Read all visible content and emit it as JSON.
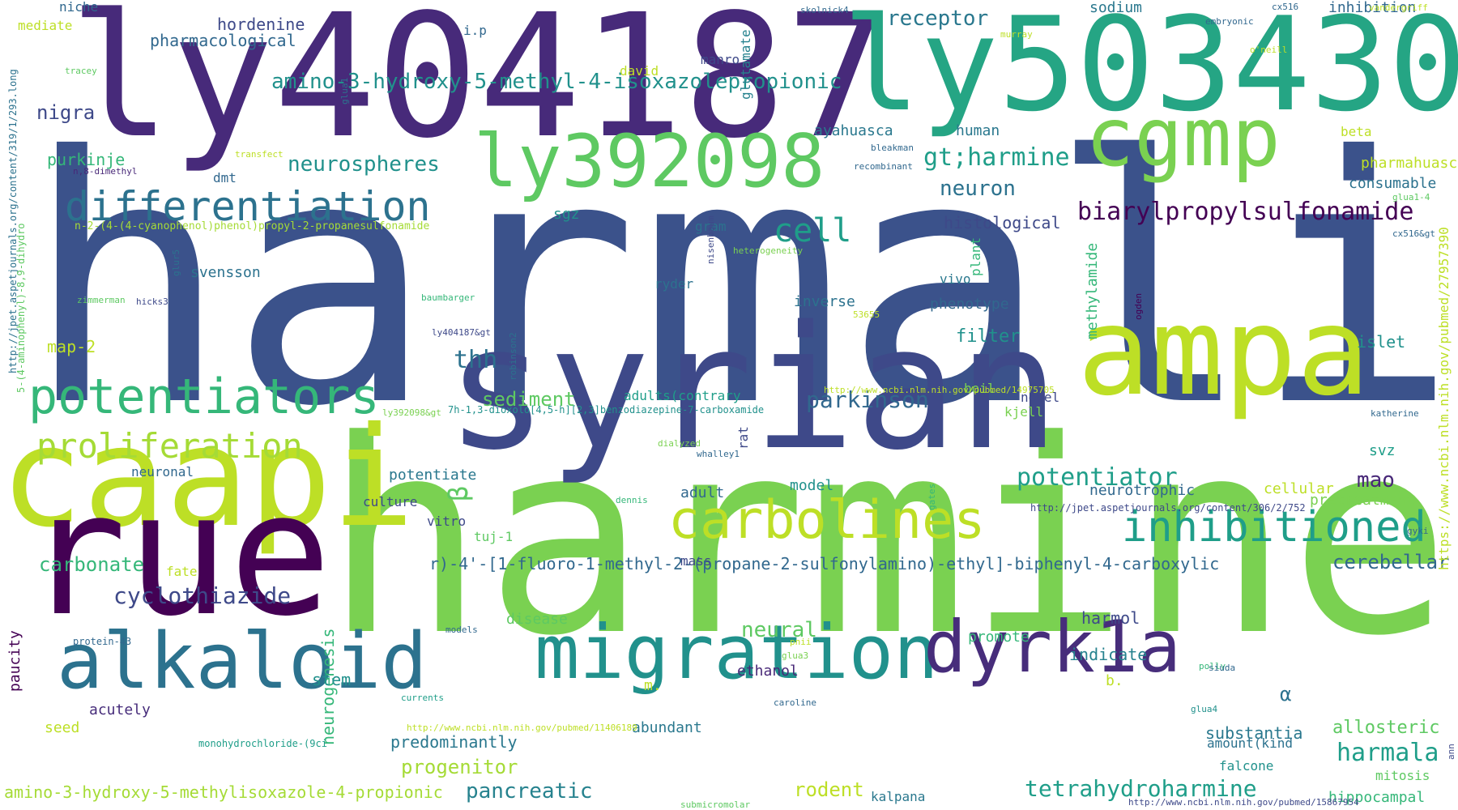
{
  "words": [
    {
      "text": "harmaline",
      "color": "#3b528b"
    },
    {
      "text": "harmine",
      "color": "#7ad151"
    },
    {
      "text": "ly404187",
      "color": "#472a7a"
    },
    {
      "text": "ly503430",
      "color": "#25a584"
    },
    {
      "text": "syrian",
      "color": "#3e4989"
    },
    {
      "text": "caapi",
      "color": "#bddf26"
    },
    {
      "text": "rue",
      "color": "#440154"
    },
    {
      "text": "ampa",
      "color": "#bddf26"
    },
    {
      "text": "cgmp",
      "color": "#7ad151"
    },
    {
      "text": "ly392098",
      "color": "#5ec962"
    },
    {
      "text": "migration",
      "color": "#21918c"
    },
    {
      "text": "dyrk1a",
      "color": "#472d7b"
    },
    {
      "text": "alkaloid",
      "color": "#2c728e"
    },
    {
      "text": "potentiators",
      "color": "#35b779"
    },
    {
      "text": "differentiation",
      "color": "#2c728e"
    },
    {
      "text": "carbolines",
      "color": "#bddf26"
    },
    {
      "text": "inhibitioned",
      "color": "#1f9e89"
    },
    {
      "text": "proliferation",
      "color": "#a5db36"
    },
    {
      "text": "cell",
      "color": "#1f9e89"
    },
    {
      "text": "biarylpropylsulfonamide",
      "color": "#440154"
    },
    {
      "text": "amino-3-hydroxy-5-methyl-4-isoxazolepropionic",
      "color": "#21918c"
    },
    {
      "text": "neurospheres",
      "color": "#21918c"
    },
    {
      "text": "gt;harmine",
      "color": "#1f9e89"
    },
    {
      "text": "receptor",
      "color": "#2a788e"
    },
    {
      "text": "potentiator",
      "color": "#1f9e89"
    },
    {
      "text": "parkinson",
      "color": "#31688e"
    },
    {
      "text": "tetrahydroharmine",
      "color": "#1f9e89"
    },
    {
      "text": "cyclothiazide",
      "color": "#3e4989"
    },
    {
      "text": "carbonate",
      "color": "#35b779"
    },
    {
      "text": "pancreatic",
      "color": "#26828e"
    },
    {
      "text": "harmala",
      "color": "#1f9e89"
    },
    {
      "text": "mao",
      "color": "#482878"
    },
    {
      "text": "nigra",
      "color": "#3e4989"
    },
    {
      "text": "thh",
      "color": "#2c728e"
    },
    {
      "text": "sediment",
      "color": "#5ec962"
    },
    {
      "text": "neuron",
      "color": "#2c728e"
    },
    {
      "text": "progenitor",
      "color": "#a5db36"
    },
    {
      "text": "predominantly",
      "color": "#2a788e"
    },
    {
      "text": "r)-4'-[1-fluoro-1-methyl-2-(propane-2-sulfonylamino)-ethyl]-biphenyl-4-carboxylic",
      "color": "#31688e"
    },
    {
      "text": "amino-3-hydroxy-5-methylisoxazole-4-propionic",
      "color": "#a5db36"
    },
    {
      "text": "cerebellar",
      "color": "#31688e"
    },
    {
      "text": "rodent",
      "color": "#bddf26"
    },
    {
      "text": "hordenine",
      "color": "#3e4989"
    },
    {
      "text": "pharmacological",
      "color": "#31688e"
    },
    {
      "text": "histological",
      "color": "#3e4989"
    },
    {
      "text": "neural",
      "color": "#5ec962"
    },
    {
      "text": "neurogenesis",
      "color": "#35b779"
    },
    {
      "text": "purkinje",
      "color": "#35b779"
    },
    {
      "text": "map-2",
      "color": "#bddf26"
    },
    {
      "text": "potentiate",
      "color": "#2a788e"
    },
    {
      "text": "ayahuasca",
      "color": "#2a788e"
    },
    {
      "text": "inverse",
      "color": "#2c728e"
    },
    {
      "text": "filter",
      "color": "#21918c"
    },
    {
      "text": "phenotype",
      "color": "#31688e"
    },
    {
      "text": "substantia",
      "color": "#2a788e"
    },
    {
      "text": "allosteric",
      "color": "#5ec962"
    },
    {
      "text": "indicate",
      "color": "#26828e"
    },
    {
      "text": "harmol",
      "color": "#3e4989"
    },
    {
      "text": "human",
      "color": "#2a788e"
    },
    {
      "text": "svensson",
      "color": "#2c728e"
    },
    {
      "text": "neurotrophic",
      "color": "#31688e"
    },
    {
      "text": "methylamide",
      "color": "#35b779"
    },
    {
      "text": "glutamate",
      "color": "#26828e"
    },
    {
      "text": "pharmahuasca",
      "color": "#bddf26"
    },
    {
      "text": "consumable",
      "color": "#2c728e"
    },
    {
      "text": "islet",
      "color": "#21918c"
    },
    {
      "text": "ethanol",
      "color": "#482878"
    },
    {
      "text": "promote",
      "color": "#35b779"
    },
    {
      "text": "stem",
      "color": "#21918c"
    },
    {
      "text": "acutely",
      "color": "#472d7b"
    },
    {
      "text": "disease",
      "color": "#5ec962"
    },
    {
      "text": "abundant",
      "color": "#2a788e"
    },
    {
      "text": "adult",
      "color": "#31688e"
    },
    {
      "text": "model",
      "color": "#21918c"
    },
    {
      "text": "culture",
      "color": "#3e4989"
    },
    {
      "text": "vitro",
      "color": "#3e4989"
    },
    {
      "text": "tuj-1",
      "color": "#5ec962"
    },
    {
      "text": "mass",
      "color": "#3e4989"
    },
    {
      "text": "neuronal",
      "color": "#31688e"
    },
    {
      "text": "sodium",
      "color": "#2a788e"
    },
    {
      "text": "inhibition",
      "color": "#31688e"
    },
    {
      "text": "hippocampal",
      "color": "#35b779"
    },
    {
      "text": "mitosis",
      "color": "#5ec962"
    },
    {
      "text": "falcone",
      "color": "#21918c"
    },
    {
      "text": "amount(kind",
      "color": "#2c728e"
    },
    {
      "text": "svz",
      "color": "#1f9e89"
    },
    {
      "text": "pretreatment",
      "color": "#7ad151"
    },
    {
      "text": "cellular",
      "color": "#bddf26"
    },
    {
      "text": "beta",
      "color": "#bddf26"
    },
    {
      "text": "kalpana",
      "color": "#2a788e"
    },
    {
      "text": "novel",
      "color": "#3e4989"
    },
    {
      "text": "kjell",
      "color": "#7ad151"
    },
    {
      "text": "boil",
      "color": "#7ad151"
    },
    {
      "text": "adults(contrary",
      "color": "#1f9e89"
    },
    {
      "text": "rat",
      "color": "#3e4989"
    },
    {
      "text": "seed",
      "color": "#bddf26"
    },
    {
      "text": "fate",
      "color": "#bddf26"
    },
    {
      "text": "dmt",
      "color": "#31688e"
    },
    {
      "text": "sgz",
      "color": "#21918c"
    },
    {
      "text": "gram",
      "color": "#2c728e"
    },
    {
      "text": "ryder",
      "color": "#2c728e"
    },
    {
      "text": "vivo",
      "color": "#2a788e"
    },
    {
      "text": "plant",
      "color": "#35b779"
    },
    {
      "text": "manro",
      "color": "#3e4989"
    },
    {
      "text": "david",
      "color": "#bddf26"
    },
    {
      "text": "niche",
      "color": "#31688e"
    },
    {
      "text": "i.p",
      "color": "#31688e"
    },
    {
      "text": "mediate",
      "color": "#bddf26"
    },
    {
      "text": "b.",
      "color": "#bddf26"
    },
    {
      "text": "m.",
      "color": "#bddf26"
    },
    {
      "text": "α",
      "color": "#2c728e"
    },
    {
      "text": "β",
      "color": "#5ec962"
    },
    {
      "text": "paucity",
      "color": "#440154"
    },
    {
      "text": "n-2-(4-(4-cyanophenol)phenol)propyl-2-propanesulfonamide",
      "color": "#a5db36"
    },
    {
      "text": "7h-1,3-dioxolo[4,5-h][2,3]benzodiazepine-7-carboxamide",
      "color": "#21918c"
    },
    {
      "text": "monohydrochloride-(9ci",
      "color": "#1f9e89"
    },
    {
      "text": "protein-43",
      "color": "#31688e"
    },
    {
      "text": "http://jpet.aspetjournals.org/content/306/2/752",
      "color": "#3e4989"
    },
    {
      "text": "http://www.ncbi.nlm.nih.gov/pubmed/15867954",
      "color": "#3e4989"
    },
    {
      "text": "https://www.ncbi.nlm.nih.gov/pubmed/27957390",
      "color": "#bddf26"
    },
    {
      "text": "http://jpet.aspetjournals.org/content/319/1/293.long",
      "color": "#2c728e"
    },
    {
      "text": "5-(4-aminophenyl)-8,9-dihydro",
      "color": "#5ec962"
    },
    {
      "text": "ly404187&gt",
      "color": "#3e4989"
    },
    {
      "text": "ly392098&gt",
      "color": "#7ad151"
    },
    {
      "text": "hicks3",
      "color": "#3e4989"
    },
    {
      "text": "zimmerman",
      "color": "#5ec962"
    },
    {
      "text": "baumbarger",
      "color": "#35b779"
    },
    {
      "text": "heterogeneity",
      "color": "#7ad151"
    },
    {
      "text": "nisenbaum",
      "color": "#3e4989"
    },
    {
      "text": "robinson2",
      "color": "#2c728e"
    },
    {
      "text": "whalley1",
      "color": "#31688e"
    },
    {
      "text": "dialyzed",
      "color": "#7ad151"
    },
    {
      "text": "dennis",
      "color": "#35b779"
    },
    {
      "text": "gates",
      "color": "#35b779"
    },
    {
      "text": "models",
      "color": "#31688e"
    },
    {
      "text": "currents",
      "color": "#1f9e89"
    },
    {
      "text": "caroline",
      "color": "#31688e"
    },
    {
      "text": "glua3",
      "color": "#7ad151"
    },
    {
      "text": "pnii",
      "color": "#bddf26"
    },
    {
      "text": "polly",
      "color": "#35b779"
    },
    {
      "text": "glua4",
      "color": "#21918c"
    },
    {
      "text": "siuda",
      "color": "#31688e"
    },
    {
      "text": "katherine",
      "color": "#31688e"
    },
    {
      "text": "ogden",
      "color": "#440154"
    },
    {
      "text": "gyki",
      "color": "#31688e"
    },
    {
      "text": "cx516&gt",
      "color": "#31688e"
    },
    {
      "text": "glua1-4",
      "color": "#5ec962"
    },
    {
      "text": "cx516",
      "color": "#31688e"
    },
    {
      "text": "skolnick4",
      "color": "#31688e"
    },
    {
      "text": "murray",
      "color": "#bddf26"
    },
    {
      "text": "vandergriff",
      "color": "#bddf26"
    },
    {
      "text": "embryonic",
      "color": "#31688e"
    },
    {
      "text": "o'neill",
      "color": "#bddf26"
    },
    {
      "text": "tracey",
      "color": "#5ec962"
    },
    {
      "text": "glur5",
      "color": "#2c728e"
    },
    {
      "text": "n,8-dimethyl",
      "color": "#482878"
    },
    {
      "text": "transfect",
      "color": "#bddf26"
    },
    {
      "text": "bleakman",
      "color": "#31688e"
    },
    {
      "text": "recombinant",
      "color": "#31688e"
    },
    {
      "text": "53655",
      "color": "#bddf26"
    },
    {
      "text": "submicromolar",
      "color": "#5ec962"
    },
    {
      "text": "glua1",
      "color": "#2c728e"
    },
    {
      "text": "http://www.ncbi.nlm.nih.gov/pubmed/14975705",
      "color": "#bddf26"
    },
    {
      "text": "http://www.ncbi.nlm.nih.gov/pubmed/11406189",
      "color": "#bddf26"
    },
    {
      "text": "ann",
      "color": "#3e4989"
    }
  ]
}
